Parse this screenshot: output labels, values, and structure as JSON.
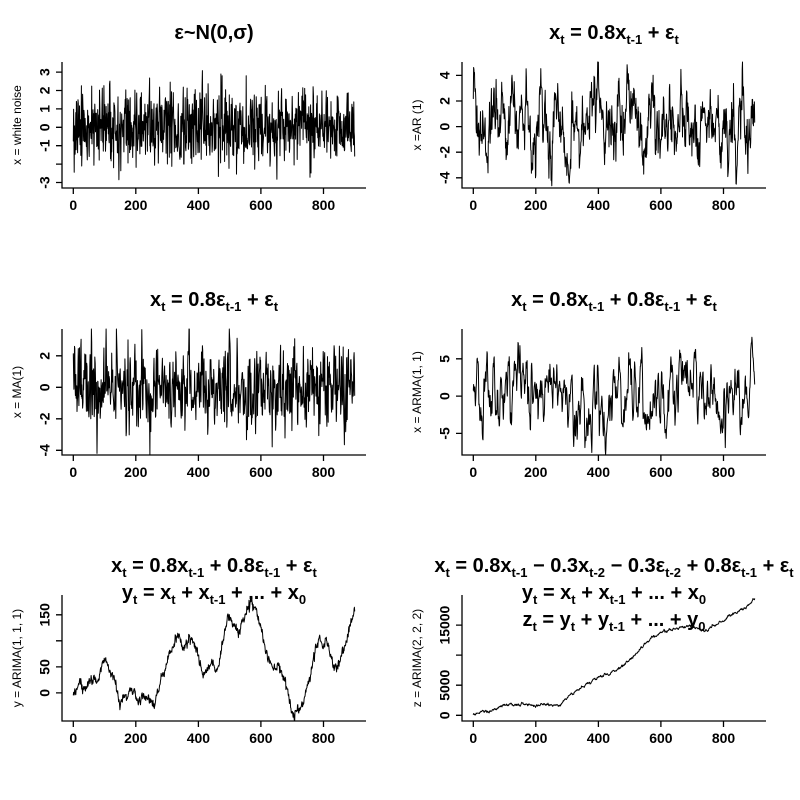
{
  "figure": {
    "background": "#ffffff",
    "line_color": "#000000",
    "text_color": "#000000",
    "rows": 3,
    "cols": 2,
    "grid": "off",
    "axis_style": "left-and-bottom-only",
    "description": "Six simulated time series panels: white noise, AR(1), MA(1), ARMA(1,1), ARIMA(1,1,1), ARIMA(2,2,2)"
  },
  "chart_data": [
    {
      "id": "white-noise",
      "type": "line",
      "title_lines": [
        "ε~N(0,σ)"
      ],
      "ylabel": "x = white noise",
      "xlabel": "",
      "x_ticks": [
        0,
        200,
        400,
        600,
        800
      ],
      "x_tick_labels": [
        "0",
        "200",
        "400",
        "600",
        "800"
      ],
      "y_ticks": [
        -3,
        -2,
        -1,
        0,
        1,
        2,
        3
      ],
      "y_tick_labels": [
        "-3",
        "",
        "-1",
        "0",
        "1",
        "2",
        "3"
      ],
      "xlim": [
        -36,
        936
      ],
      "ylim": [
        -3.3,
        3.55
      ],
      "x_range_data": [
        0,
        900
      ],
      "n_points": 901,
      "line_color": "#000000",
      "gen": {
        "kind": "arma",
        "phi": 0,
        "theta": 0,
        "sd": 1,
        "seed": 11
      }
    },
    {
      "id": "ar1",
      "type": "line",
      "title_lines": [
        "x_{t} = 0.8x_{t-1} + ε_{t}"
      ],
      "ylabel": "x =AR (1)",
      "xlabel": "",
      "x_ticks": [
        0,
        200,
        400,
        600,
        800
      ],
      "x_tick_labels": [
        "0",
        "200",
        "400",
        "600",
        "800"
      ],
      "y_ticks": [
        -4,
        -2,
        0,
        2,
        4
      ],
      "y_tick_labels": [
        "-4",
        "-2",
        "0",
        "2",
        "4"
      ],
      "xlim": [
        -36,
        936
      ],
      "ylim": [
        -4.8,
        5.05
      ],
      "x_range_data": [
        0,
        900
      ],
      "n_points": 901,
      "line_color": "#000000",
      "gen": {
        "kind": "arma",
        "phi": 0.8,
        "theta": 0,
        "sd": 1,
        "seed": 23
      }
    },
    {
      "id": "ma1",
      "type": "line",
      "title_lines": [
        "x_{t} = 0.8ε_{t-1} + ε_{t}"
      ],
      "ylabel": "x = MA(1)",
      "xlabel": "",
      "x_ticks": [
        0,
        200,
        400,
        600,
        800
      ],
      "x_tick_labels": [
        "0",
        "200",
        "400",
        "600",
        "800"
      ],
      "y_ticks": [
        -4,
        -2,
        0,
        2
      ],
      "y_tick_labels": [
        "-4",
        "-2",
        "0",
        "2"
      ],
      "xlim": [
        -36,
        936
      ],
      "ylim": [
        -4.3,
        3.7
      ],
      "x_range_data": [
        0,
        900
      ],
      "n_points": 901,
      "line_color": "#000000",
      "gen": {
        "kind": "arma",
        "phi": 0,
        "theta": 0.8,
        "sd": 1,
        "seed": 37
      }
    },
    {
      "id": "arma-1-1",
      "type": "line",
      "title_lines": [
        "x_{t} = 0.8x_{t-1} + 0.8ε_{t-1} + ε_{t}"
      ],
      "ylabel": "x = ARMA(1, 1)",
      "xlabel": "",
      "x_ticks": [
        0,
        200,
        400,
        600,
        800
      ],
      "x_tick_labels": [
        "0",
        "200",
        "400",
        "600",
        "800"
      ],
      "y_ticks": [
        -5,
        0,
        5
      ],
      "y_tick_labels": [
        "-5",
        "0",
        "5"
      ],
      "xlim": [
        -36,
        936
      ],
      "ylim": [
        -7.9,
        9.0
      ],
      "x_range_data": [
        0,
        900
      ],
      "n_points": 901,
      "line_color": "#000000",
      "gen": {
        "kind": "arma",
        "phi": 0.8,
        "theta": 0.8,
        "sd": 1,
        "seed": 53
      }
    },
    {
      "id": "arima-1-1-1",
      "type": "line",
      "title_lines": [
        "x_{t} = 0.8x_{t-1} + 0.8ε_{t-1} + ε_{t}",
        "y_{t} = x_{t} + x_{t-1} + ... + x_{0}"
      ],
      "ylabel": "y = ARIMA(1, 1, 1)",
      "xlabel": "",
      "x_ticks": [
        0,
        200,
        400,
        600,
        800
      ],
      "x_tick_labels": [
        "0",
        "200",
        "400",
        "600",
        "800"
      ],
      "y_ticks": [
        0,
        50,
        100,
        150
      ],
      "y_tick_labels": [
        "0",
        "50",
        "",
        "150"
      ],
      "xlim": [
        -36,
        936
      ],
      "ylim": [
        -54,
        188
      ],
      "x_range_data": [
        0,
        900
      ],
      "n_points": 901,
      "line_color": "#000000",
      "gen": {
        "kind": "keypoints",
        "noise_phi": 0.55,
        "noise_sd": 4.5,
        "seed": 71
      },
      "keypoints": {
        "x": [
          0,
          21,
          34,
          51,
          64,
          77,
          90,
          101,
          117,
          133,
          149,
          165,
          181,
          194,
          208,
          222,
          233,
          246,
          259,
          277,
          298,
          309,
          322,
          335,
          351,
          367,
          378,
          394,
          415,
          431,
          442,
          458,
          472,
          484,
          496,
          512,
          521,
          528,
          543,
          557,
          568,
          576,
          584,
          593,
          602,
          613,
          624,
          640,
          656,
          668,
          683,
          695,
          707,
          718,
          729,
          745,
          761,
          777,
          788,
          798,
          809,
          825,
          836,
          852,
          868,
          884,
          893,
          900
        ],
        "y": [
          -4,
          25,
          1,
          21,
          29,
          22,
          45,
          70,
          42,
          26,
          -23,
          -4,
          10,
          2,
          -18,
          -11,
          -4,
          -13,
          -23,
          20,
          55,
          74,
          95,
          109,
          87,
          103,
          106,
          84,
          33,
          49,
          58,
          36,
          80,
          115,
          150,
          125,
          132,
          111,
          140,
          163,
          173,
          168,
          162,
          140,
          120,
          90,
          68,
          49,
          58,
          40,
          9,
          -25,
          -48,
          -22,
          -33,
          5,
          38,
          90,
          106,
          90,
          103,
          66,
          44,
          57,
          87,
          127,
          148,
          160
        ]
      }
    },
    {
      "id": "arima-2-2-2",
      "type": "line",
      "title_lines": [
        "x_{t} = 0.8x_{t-1} − 0.3x_{t-2} − 0.3ε_{t-2} + 0.8ε_{t-1} + ε_{t}",
        "y_{t} = x_{t} + x_{t-1} + ... + x_{0}",
        "z_{t} = y_{t} + y_{t-1} + ... + y_{0}"
      ],
      "ylabel": "z = ARIMA(2, 2, 2)",
      "xlabel": "",
      "x_ticks": [
        0,
        200,
        400,
        600,
        800
      ],
      "x_tick_labels": [
        "0",
        "200",
        "400",
        "600",
        "800"
      ],
      "y_ticks": [
        0,
        5000,
        10000,
        15000
      ],
      "y_tick_labels": [
        "0",
        "5000",
        "",
        "15000"
      ],
      "xlim": [
        -36,
        936
      ],
      "ylim": [
        -950,
        20000
      ],
      "x_range_data": [
        0,
        900
      ],
      "n_points": 901,
      "line_color": "#000000",
      "gen": {
        "kind": "keypoints",
        "noise_phi": 0.8,
        "noise_sd": 90,
        "seed": 97
      },
      "keypoints": {
        "x": [
          0,
          22,
          64,
          97,
          118,
          139,
          171,
          203,
          235,
          257,
          278,
          289,
          310,
          332,
          353,
          374,
          396,
          417,
          439,
          460,
          481,
          503,
          524,
          545,
          567,
          588,
          609,
          631,
          652,
          673,
          694,
          710,
          726,
          742,
          758,
          780,
          801,
          822,
          844,
          865,
          886,
          900
        ],
        "y": [
          150,
          500,
          900,
          1560,
          1730,
          1840,
          1730,
          1730,
          1840,
          1620,
          1730,
          2170,
          3390,
          4220,
          4940,
          5500,
          6050,
          6330,
          6830,
          7440,
          8380,
          9380,
          10490,
          11600,
          12650,
          13370,
          13920,
          14310,
          14480,
          14640,
          14750,
          14590,
          14200,
          14030,
          14480,
          15140,
          15860,
          16590,
          17140,
          17700,
          18480,
          19500
        ]
      }
    }
  ]
}
